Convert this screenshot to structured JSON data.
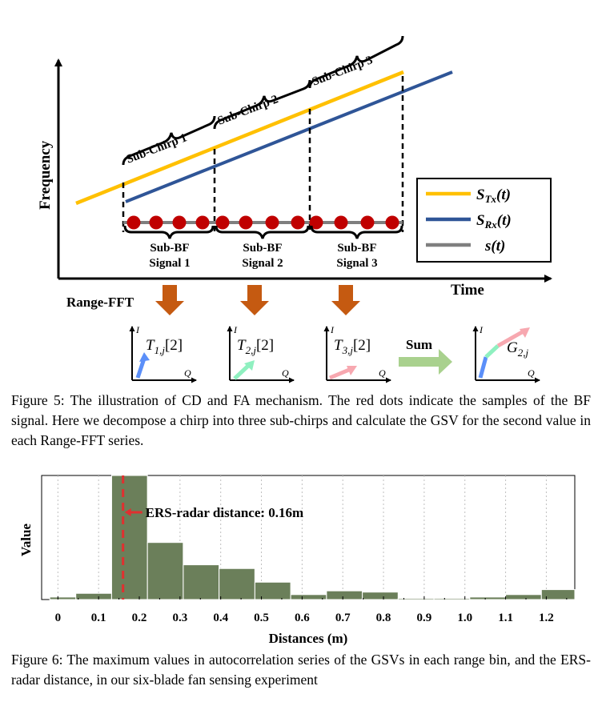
{
  "figure5": {
    "axis_frequency": "Frequency",
    "axis_time": "Time",
    "sub_chirps": [
      "Sub-Chirp 1",
      "Sub-Chirp 2",
      "Sub-Chirp 3"
    ],
    "sub_bf_signals": [
      {
        "line1": "Sub-BF",
        "line2": "Signal 1"
      },
      {
        "line1": "Sub-BF",
        "line2": "Signal 2"
      },
      {
        "line1": "Sub-BF",
        "line2": "Signal 3"
      }
    ],
    "legend": [
      {
        "label": "S",
        "sub": "Tx",
        "suffix": "(t)",
        "color": "#FFC000"
      },
      {
        "label": "S",
        "sub": "Rx",
        "suffix": "(t)",
        "color": "#2F5597"
      },
      {
        "label": "s",
        "sub": "",
        "suffix": "(t)",
        "color": "#7F7F7F"
      }
    ],
    "range_fft": "Range-FFT",
    "sum_label": "Sum",
    "axis_i": "I",
    "axis_q": "Q",
    "vectors": [
      {
        "label": "T",
        "sub": "1,j",
        "suffix": "[2]",
        "color": "#5B8FF9"
      },
      {
        "label": "T",
        "sub": "2,j",
        "suffix": "[2]",
        "color": "#8FF0C0"
      },
      {
        "label": "T",
        "sub": "3,j",
        "suffix": "[2]",
        "color": "#F7A8B0"
      },
      {
        "label": "G",
        "sub": "2,j",
        "suffix": ""
      }
    ],
    "colors": {
      "arrow": "#C55A11",
      "sum_arrow": "#A9D18E",
      "dots": "#C00000"
    },
    "caption": "Figure 5: The illustration of CD and FA mechanism. The red dots indicate the samples of the BF signal. Here we decompose a chirp into three sub-chirps and calculate the GSV for the second value in each Range-FFT series."
  },
  "figure6": {
    "caption": "Figure 6: The maximum values in autocorrelation series of the GSVs in each range bin, and the ERS-radar distance, in our six-blade fan sensing experiment"
  },
  "chart_data": {
    "type": "bar",
    "xlabel": "Distances (m)",
    "ylabel": "Value",
    "x_ticks": [
      "0",
      "0.1",
      "0.2",
      "0.3",
      "0.4",
      "0.5",
      "0.6",
      "0.7",
      "0.8",
      "0.9",
      "1.0",
      "1.1",
      "1.2"
    ],
    "xlim": [
      -0.04,
      1.27
    ],
    "ylim": [
      0,
      1
    ],
    "bin_width": 0.0879,
    "x": [
      -0.02,
      0.044,
      0.132,
      0.22,
      0.308,
      0.396,
      0.484,
      0.572,
      0.66,
      0.748,
      0.836,
      0.924,
      1.012,
      1.1,
      1.188,
      1.276
    ],
    "values": [
      0.02,
      0.05,
      1.0,
      0.46,
      0.28,
      0.25,
      0.14,
      0.04,
      0.07,
      0.06,
      0.01,
      0.01,
      0.02,
      0.04,
      0.08,
      0.04
    ],
    "bar_color": "#6B7F5A",
    "annotation": {
      "x": 0.16,
      "label": "ERS-radar distance: 0.16m",
      "color": "#E03030"
    },
    "grid": true
  }
}
